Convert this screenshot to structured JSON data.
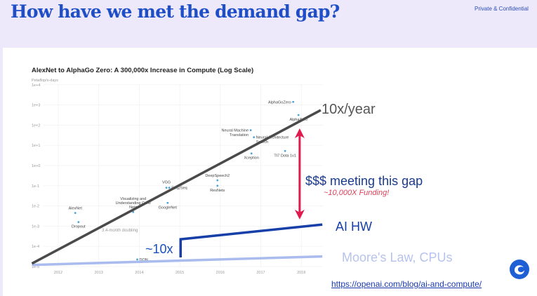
{
  "header": {
    "title": "How have we met the demand gap?",
    "confidential": "Private & Confidential"
  },
  "chart_data": {
    "type": "scatter",
    "title": "AlexNet to AlphaGo Zero: A 300,000x Increase in Compute (Log Scale)",
    "ylabel": "Petaflop/s-days",
    "yscale": "log",
    "ytick_labels": [
      "1e-5",
      "1e-4",
      "1e-3",
      "1e-2",
      "1e-1",
      "1e+0",
      "1e+1",
      "1e+2",
      "1e+3",
      "1e+4"
    ],
    "ylim_log10": [
      -5,
      4
    ],
    "xtick_labels": [
      "2012",
      "2013",
      "2014",
      "2015",
      "2016",
      "2017",
      "2018"
    ],
    "xlim": [
      2011.35,
      2018.55
    ],
    "grid": true,
    "point_color": "#4aa3d8",
    "points": [
      {
        "label": "AlexNet",
        "x": 2012.42,
        "log10_y": -2.35,
        "pos": "above"
      },
      {
        "label": "Dropout",
        "x": 2012.5,
        "log10_y": -2.8,
        "pos": "below"
      },
      {
        "label": "Visualizing and Understanding Conv Nets",
        "x": 2013.85,
        "log10_y": -2.3,
        "pos": "above"
      },
      {
        "label": "DQN",
        "x": 2013.95,
        "log10_y": -4.65,
        "pos": "right"
      },
      {
        "label": "VGG",
        "x": 2014.67,
        "log10_y": -1.1,
        "pos": "above"
      },
      {
        "label": "Seq2Seq",
        "x": 2014.74,
        "log10_y": -1.1,
        "pos": "right"
      },
      {
        "label": "GoogleNet",
        "x": 2014.7,
        "log10_y": -1.85,
        "pos": "below"
      },
      {
        "label": "DeepSpeech2",
        "x": 2015.93,
        "log10_y": -0.73,
        "pos": "above"
      },
      {
        "label": "ResNets",
        "x": 2015.93,
        "log10_y": -1.0,
        "pos": "below"
      },
      {
        "label": "Xception",
        "x": 2016.77,
        "log10_y": 0.6,
        "pos": "below"
      },
      {
        "label": "Neural Machine Translation",
        "x": 2016.75,
        "log10_y": 1.75,
        "pos": "left"
      },
      {
        "label": "Neural Architecture Search",
        "x": 2016.83,
        "log10_y": 1.4,
        "pos": "right"
      },
      {
        "label": "TI7 Dota 1v1",
        "x": 2017.6,
        "log10_y": 0.72,
        "pos": "below"
      },
      {
        "label": "AlphaGoZero",
        "x": 2017.8,
        "log10_y": 3.15,
        "pos": "left"
      },
      {
        "label": "AlphaZero",
        "x": 2017.93,
        "log10_y": 2.5,
        "pos": "below"
      }
    ],
    "trend_note": "3.4-month doubling",
    "overlays": {
      "trend": {
        "label": "10x/year",
        "color": "#4a4a4a",
        "from": [
          2011.35,
          -4.85
        ],
        "to": [
          2018.48,
          2.74
        ]
      },
      "moore": {
        "label": "Moore's Law, CPUs",
        "color": "#aabbee",
        "from": [
          2011.35,
          -4.92
        ],
        "to": [
          2018.52,
          -4.5
        ]
      },
      "ai_hw": {
        "label": "AI HW",
        "color": "#1640a8",
        "jump_label": "~10x",
        "points": [
          [
            2015.02,
            -4.55
          ],
          [
            2015.02,
            -3.65
          ],
          [
            2018.52,
            -2.92
          ]
        ]
      },
      "gap": {
        "label": "$$$ meeting this gap",
        "sublabel": "~10,000X Funding!",
        "color": "#e0194f",
        "label_color": "#1a3a8f",
        "x": 2017.96,
        "from": 1.84,
        "to": -2.67
      }
    }
  },
  "source_link": "https://openai.com/blog/ai-and-compute/",
  "logo": {
    "color": "#1f5fd6"
  }
}
